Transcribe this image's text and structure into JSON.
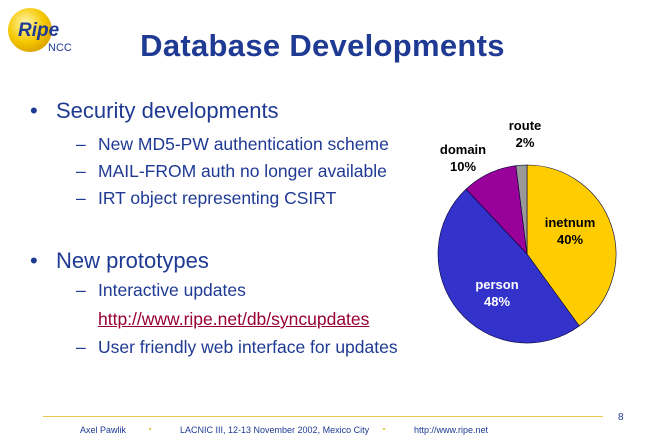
{
  "logo": {
    "text_main": "Ripe",
    "text_sub": "NCC"
  },
  "title": "Database Developments",
  "bullets": [
    {
      "text": "Security developments",
      "sub": [
        "New MD5-PW authentication scheme",
        "MAIL-FROM auth no longer available",
        "IRT object representing CSIRT"
      ]
    },
    {
      "text": "New prototypes",
      "sub": [
        "Interactive updates",
        "User friendly web interface for updates"
      ],
      "link": "http://www.ripe.net/db/syncupdates"
    }
  ],
  "bullet_char": "•",
  "dash_char": "–",
  "chart_data": {
    "type": "pie",
    "start": "top, clockwise",
    "slices": [
      {
        "name": "inetnum",
        "value": 40,
        "label": "40%",
        "color": "#ffcc00"
      },
      {
        "name": "person",
        "value": 48,
        "label": "48%",
        "color": "#3333cc"
      },
      {
        "name": "domain",
        "value": 10,
        "label": "10%",
        "color": "#990099"
      },
      {
        "name": "route",
        "value": 2,
        "label": "2%",
        "color": "#999999"
      }
    ]
  },
  "footer": {
    "author": "Axel Pawlik",
    "event": "LACNIC III, 12-13 November 2002, Mexico City",
    "url": "http://www.ripe.net",
    "page": "8"
  },
  "colors": {
    "title": "#1f3a93",
    "link": "#990033",
    "footer_rule": "#e8c84a"
  }
}
